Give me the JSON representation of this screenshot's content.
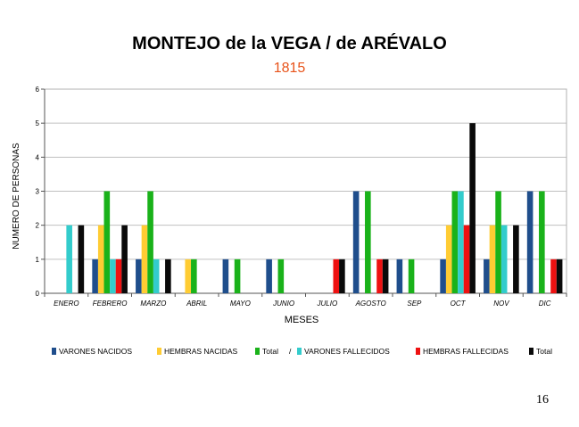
{
  "page": {
    "number": "16"
  },
  "colors": {
    "varones_nacidos": "#1f4e8c",
    "hembras_nacidas": "#ffcc33",
    "total_nacidos": "#1ab21a",
    "varones_fallecidos": "#33cccc",
    "hembras_fallecidas": "#ee1111",
    "total_fallecidos": "#0a0a0a",
    "gridline": "#c0c0c0",
    "axis": "#555555",
    "subtitle": "#e8531a"
  },
  "chart_data": {
    "type": "bar",
    "title": "MONTEJO de la VEGA / de ARÉVALO",
    "subtitle": "1815",
    "xlabel": "MESES",
    "ylabel": "NUMERO DE PERSONAS",
    "ylim": [
      0,
      6
    ],
    "yticks": [
      "0",
      "1",
      "2",
      "3",
      "4",
      "5",
      "6"
    ],
    "grid": true,
    "legend_position": "bottom",
    "legend_separator": "/",
    "categories": [
      "ENERO",
      "FEBRERO",
      "MARZO",
      "ABRIL",
      "MAYO",
      "JUNIO",
      "JULIO",
      "AGOSTO",
      "SEP",
      "OCT",
      "NOV",
      "DIC"
    ],
    "series": [
      {
        "name": "VARONES NACIDOS",
        "color_key": "varones_nacidos",
        "values": [
          0,
          1,
          1,
          0,
          1,
          1,
          0,
          3,
          1,
          1,
          1,
          3
        ]
      },
      {
        "name": "HEMBRAS NACIDAS",
        "color_key": "hembras_nacidas",
        "values": [
          0,
          2,
          2,
          1,
          0,
          0,
          0,
          0,
          0,
          2,
          2,
          0
        ]
      },
      {
        "name": "Total",
        "color_key": "total_nacidos",
        "values": [
          0,
          3,
          3,
          1,
          1,
          1,
          0,
          3,
          1,
          3,
          3,
          3
        ]
      },
      {
        "name": "VARONES FALLECIDOS",
        "color_key": "varones_fallecidos",
        "values": [
          2,
          1,
          1,
          0,
          0,
          0,
          0,
          0,
          0,
          3,
          2,
          0
        ]
      },
      {
        "name": "HEMBRAS FALLECIDAS",
        "color_key": "hembras_fallecidas",
        "values": [
          0,
          1,
          0,
          0,
          0,
          0,
          1,
          1,
          0,
          2,
          0,
          1
        ]
      },
      {
        "name": "Total",
        "color_key": "total_fallecidos",
        "values": [
          2,
          2,
          1,
          0,
          0,
          0,
          1,
          1,
          0,
          5,
          2,
          1
        ]
      }
    ]
  }
}
